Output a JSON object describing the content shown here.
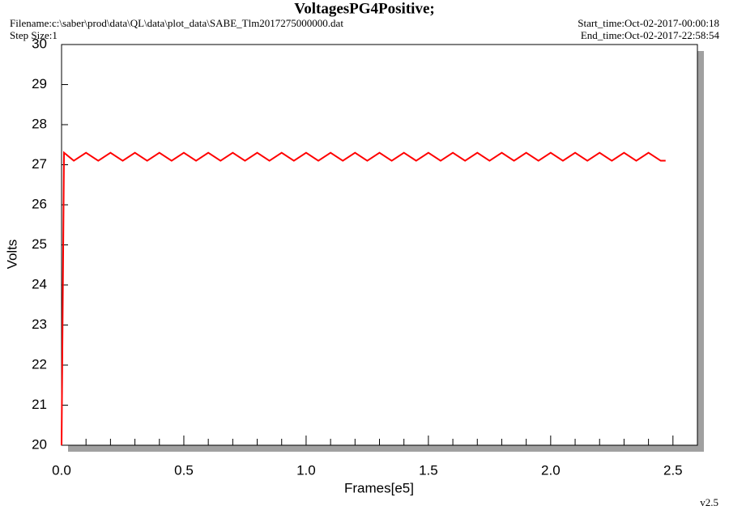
{
  "chart_data": {
    "type": "line",
    "title": "VoltagesPG4Positive;",
    "filename": "Filename:c:\\saber\\prod\\data\\QL\\data\\plot_data\\SABE_Tlm2017275000000.dat",
    "step_size": "Step Size:1",
    "start_time": "Start_time:Oct-02-2017-00:00:18",
    "end_time": "End_time:Oct-02-2017-22:58:54",
    "version": "v2.5",
    "xlabel": "Frames[e5]",
    "ylabel": "Volts",
    "xlim": [
      0,
      2.6
    ],
    "ylim": [
      20,
      30
    ],
    "xticks": [
      {
        "value": 0,
        "label": "0.0"
      },
      0.5,
      {
        "value": 1,
        "label": "1.0"
      },
      1.5,
      {
        "value": 2,
        "label": "2.0"
      },
      2.5
    ],
    "xminorticks": [
      0.1,
      0.2,
      0.3,
      0.4,
      0.6,
      0.7,
      0.8,
      0.9,
      1.1,
      1.2,
      1.3,
      1.4,
      1.6,
      1.7,
      1.8,
      1.9,
      2.1,
      2.2,
      2.3,
      2.4
    ],
    "yticks": [
      20,
      21,
      22,
      23,
      24,
      25,
      26,
      27,
      28,
      29,
      30
    ],
    "x": [
      0,
      0.01,
      0.05,
      0.1,
      0.15,
      0.2,
      0.25,
      0.3,
      0.35,
      0.4,
      0.45,
      0.5,
      0.55,
      0.6,
      0.65,
      0.7,
      0.75,
      0.8,
      0.85,
      0.9,
      0.95,
      1.0,
      1.05,
      1.1,
      1.15,
      1.2,
      1.25,
      1.3,
      1.35,
      1.4,
      1.45,
      1.5,
      1.55,
      1.6,
      1.65,
      1.7,
      1.75,
      1.8,
      1.85,
      1.9,
      1.95,
      2.0,
      2.05,
      2.1,
      2.15,
      2.2,
      2.25,
      2.3,
      2.35,
      2.4,
      2.45,
      2.47
    ],
    "series": [
      {
        "color": "#ff0000",
        "values": [
          20,
          27.3,
          27.1,
          27.3,
          27.1,
          27.3,
          27.1,
          27.3,
          27.1,
          27.3,
          27.1,
          27.3,
          27.1,
          27.3,
          27.1,
          27.3,
          27.1,
          27.3,
          27.1,
          27.3,
          27.1,
          27.3,
          27.1,
          27.3,
          27.1,
          27.3,
          27.1,
          27.3,
          27.1,
          27.3,
          27.1,
          27.3,
          27.1,
          27.3,
          27.1,
          27.3,
          27.1,
          27.3,
          27.1,
          27.3,
          27.1,
          27.3,
          27.1,
          27.3,
          27.1,
          27.3,
          27.1,
          27.3,
          27.1,
          27.3,
          27.1,
          27.1
        ]
      }
    ]
  }
}
